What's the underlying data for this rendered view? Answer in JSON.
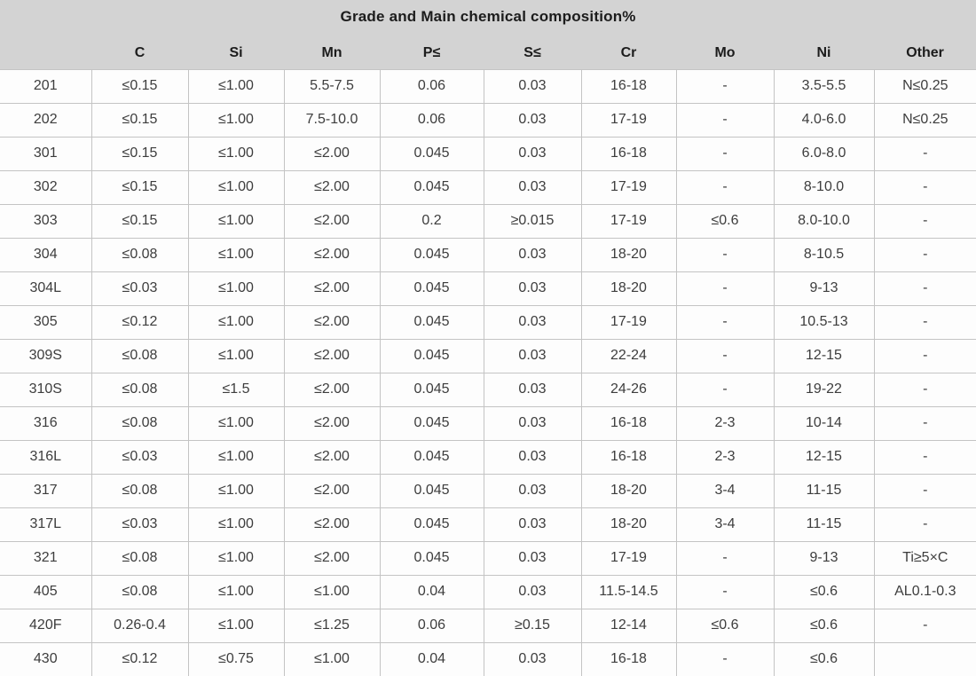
{
  "table": {
    "title": "Grade and Main chemical composition%",
    "columns": [
      "",
      "C",
      "Si",
      "Mn",
      "P≤",
      "S≤",
      "Cr",
      "Mo",
      "Ni",
      "Other"
    ],
    "rows": [
      [
        "201",
        "≤0.15",
        "≤1.00",
        "5.5-7.5",
        "0.06",
        "0.03",
        "16-18",
        "-",
        "3.5-5.5",
        "N≤0.25"
      ],
      [
        "202",
        "≤0.15",
        "≤1.00",
        "7.5-10.0",
        "0.06",
        "0.03",
        "17-19",
        "-",
        "4.0-6.0",
        "N≤0.25"
      ],
      [
        "301",
        "≤0.15",
        "≤1.00",
        "≤2.00",
        "0.045",
        "0.03",
        "16-18",
        "-",
        "6.0-8.0",
        "-"
      ],
      [
        "302",
        "≤0.15",
        "≤1.00",
        "≤2.00",
        "0.045",
        "0.03",
        "17-19",
        "-",
        "8-10.0",
        "-"
      ],
      [
        "303",
        "≤0.15",
        "≤1.00",
        "≤2.00",
        "0.2",
        "≥0.015",
        "17-19",
        "≤0.6",
        "8.0-10.0",
        "-"
      ],
      [
        "304",
        "≤0.08",
        "≤1.00",
        "≤2.00",
        "0.045",
        "0.03",
        "18-20",
        "-",
        "8-10.5",
        "-"
      ],
      [
        "304L",
        "≤0.03",
        "≤1.00",
        "≤2.00",
        "0.045",
        "0.03",
        "18-20",
        "-",
        "9-13",
        "-"
      ],
      [
        "305",
        "≤0.12",
        "≤1.00",
        "≤2.00",
        "0.045",
        "0.03",
        "17-19",
        "-",
        "10.5-13",
        "-"
      ],
      [
        "309S",
        "≤0.08",
        "≤1.00",
        "≤2.00",
        "0.045",
        "0.03",
        "22-24",
        "-",
        "12-15",
        "-"
      ],
      [
        "310S",
        "≤0.08",
        "≤1.5",
        "≤2.00",
        "0.045",
        "0.03",
        "24-26",
        "-",
        "19-22",
        "-"
      ],
      [
        "316",
        "≤0.08",
        "≤1.00",
        "≤2.00",
        "0.045",
        "0.03",
        "16-18",
        "2-3",
        "10-14",
        "-"
      ],
      [
        "316L",
        "≤0.03",
        "≤1.00",
        "≤2.00",
        "0.045",
        "0.03",
        "16-18",
        "2-3",
        "12-15",
        "-"
      ],
      [
        "317",
        "≤0.08",
        "≤1.00",
        "≤2.00",
        "0.045",
        "0.03",
        "18-20",
        "3-4",
        "11-15",
        "-"
      ],
      [
        "317L",
        "≤0.03",
        "≤1.00",
        "≤2.00",
        "0.045",
        "0.03",
        "18-20",
        "3-4",
        "11-15",
        "-"
      ],
      [
        "321",
        "≤0.08",
        "≤1.00",
        "≤2.00",
        "0.045",
        "0.03",
        "17-19",
        "-",
        "9-13",
        "Ti≥5×C"
      ],
      [
        "405",
        "≤0.08",
        "≤1.00",
        "≤1.00",
        "0.04",
        "0.03",
        "11.5-14.5",
        "-",
        "≤0.6",
        "AL0.1-0.3"
      ],
      [
        "420F",
        "0.26-0.4",
        "≤1.00",
        "≤1.25",
        "0.06",
        "≥0.15",
        "12-14",
        "≤0.6",
        "≤0.6",
        "-"
      ],
      [
        "430",
        "≤0.12",
        "≤0.75",
        "≤1.00",
        "0.04",
        "0.03",
        "16-18",
        "-",
        "≤0.6",
        ""
      ]
    ]
  },
  "colors": {
    "header_bg": "#d3d3d3",
    "border": "#c4c4c4",
    "body_bg": "#fdfdfd",
    "text": "#3d3d3d",
    "header_text": "#1c1c1c"
  }
}
